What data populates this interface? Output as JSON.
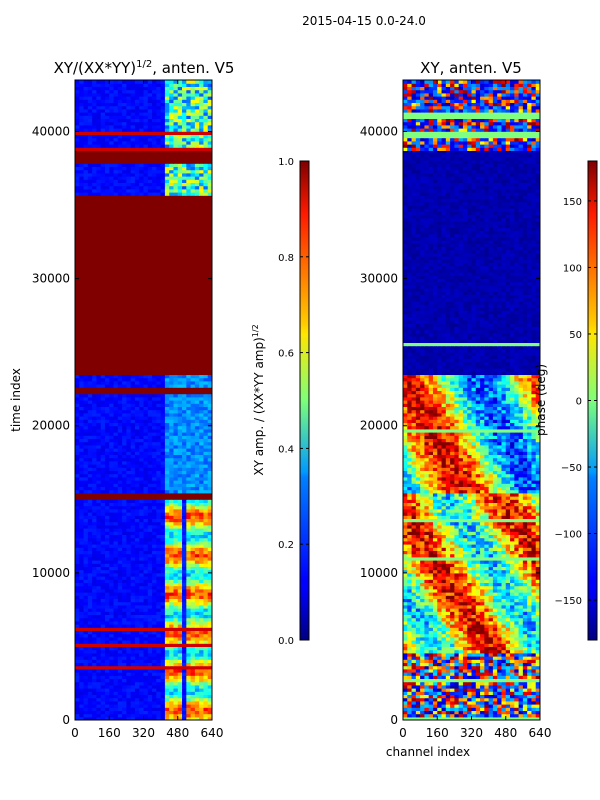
{
  "suptitle": "2015-04-15 0.0-24.0",
  "charts": [
    {
      "type": "heatmap",
      "id": "amp",
      "title": "XY/(XX*YY)",
      "title_sup": "1/2",
      "title_suffix": ", anten. V5",
      "xlabel": "",
      "ylabel": "time index",
      "xlim": [
        0,
        640
      ],
      "ylim": [
        0,
        43500
      ],
      "xticks": [
        0,
        160,
        320,
        480,
        640
      ],
      "yticks": [
        0,
        10000,
        20000,
        30000,
        40000
      ],
      "colorbar": {
        "label": "XY amp. / (XX*YY amp)",
        "label_sup": "1/2",
        "range": [
          0.0,
          1.0
        ],
        "ticks": [
          "0.0",
          "0.2",
          "0.4",
          "0.6",
          "0.8",
          "1.0"
        ],
        "tick_values": [
          0.0,
          0.2,
          0.4,
          0.6,
          0.8,
          1.0
        ]
      },
      "features": [
        {
          "name": "saturated-block",
          "y_range": [
            23500,
            35000
          ],
          "value": 1.0
        },
        {
          "name": "saturated-band",
          "y_range": [
            37800,
            38800
          ],
          "value": 1.0
        },
        {
          "name": "saturated-band",
          "y_range": [
            35000,
            35600
          ],
          "value": 1.0
        },
        {
          "name": "saturated-band",
          "y_range": [
            22200,
            22700
          ],
          "value": 1.0
        },
        {
          "name": "saturated-band",
          "y_range": [
            15100,
            15500
          ],
          "value": 1.0
        },
        {
          "name": "high-amp-channels",
          "x_range": [
            420,
            640
          ],
          "y_range": [
            0,
            15000
          ],
          "value": 0.6
        }
      ]
    },
    {
      "type": "heatmap",
      "id": "phase",
      "title": "XY, anten. V5",
      "xlabel": "channel index",
      "ylabel": "",
      "xlim": [
        0,
        640
      ],
      "ylim": [
        0,
        43500
      ],
      "xticks": [
        0,
        160,
        320,
        480,
        640
      ],
      "yticks": [
        0,
        10000,
        20000,
        30000,
        40000
      ],
      "colorbar": {
        "label": "phase (deg)",
        "range": [
          -180,
          180
        ],
        "ticks": [
          "150",
          "100",
          "50",
          "0",
          "−50",
          "−100",
          "−150"
        ],
        "tick_values": [
          150,
          100,
          50,
          0,
          -50,
          -100,
          -150
        ]
      },
      "features": [
        {
          "name": "flat-phase-block",
          "y_range": [
            23500,
            38800
          ],
          "value": -175
        },
        {
          "name": "noisy-phase-region",
          "y_range": [
            0,
            23500
          ],
          "value": 0
        },
        {
          "name": "noisy-phase-region",
          "y_range": [
            38800,
            43500
          ],
          "value": 0
        }
      ]
    }
  ]
}
